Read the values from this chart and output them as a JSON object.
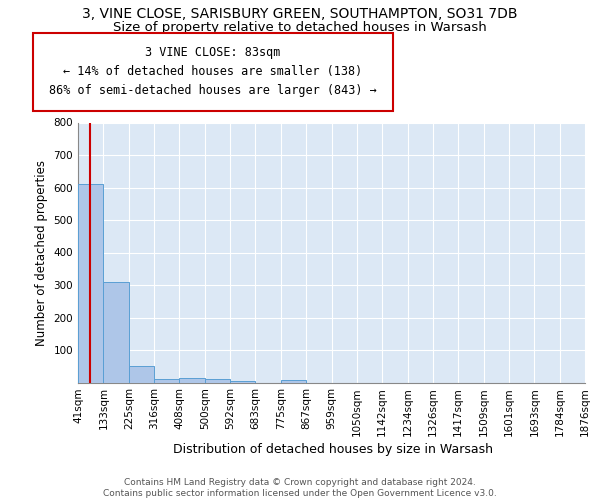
{
  "title_line1": "3, VINE CLOSE, SARISBURY GREEN, SOUTHAMPTON, SO31 7DB",
  "title_line2": "Size of property relative to detached houses in Warsash",
  "xlabel": "Distribution of detached houses by size in Warsash",
  "ylabel": "Number of detached properties",
  "bin_edges": [
    41,
    133,
    225,
    316,
    408,
    500,
    592,
    683,
    775,
    867,
    959,
    1050,
    1142,
    1234,
    1326,
    1417,
    1509,
    1601,
    1693,
    1784,
    1876
  ],
  "bar_heights": [
    610,
    310,
    50,
    10,
    13,
    10,
    5,
    0,
    8,
    0,
    0,
    0,
    0,
    0,
    0,
    0,
    0,
    0,
    0,
    0
  ],
  "bar_color": "#aec6e8",
  "bar_edge_color": "#5a9fd4",
  "property_size": 83,
  "vline_color": "#cc0000",
  "annotation_line1": "3 VINE CLOSE: 83sqm",
  "annotation_line2": "← 14% of detached houses are smaller (138)",
  "annotation_line3": "86% of semi-detached houses are larger (843) →",
  "annotation_box_edge": "#cc0000",
  "annotation_box_face": "#ffffff",
  "ylim": [
    0,
    800
  ],
  "yticks": [
    0,
    100,
    200,
    300,
    400,
    500,
    600,
    700,
    800
  ],
  "background_color": "#dce8f5",
  "grid_color": "#ffffff",
  "footer_text": "Contains HM Land Registry data © Crown copyright and database right 2024.\nContains public sector information licensed under the Open Government Licence v3.0.",
  "title_fontsize": 10,
  "subtitle_fontsize": 9.5,
  "tick_fontsize": 7.5,
  "ylabel_fontsize": 8.5,
  "xlabel_fontsize": 9,
  "annotation_fontsize": 8.5,
  "footer_fontsize": 6.5
}
